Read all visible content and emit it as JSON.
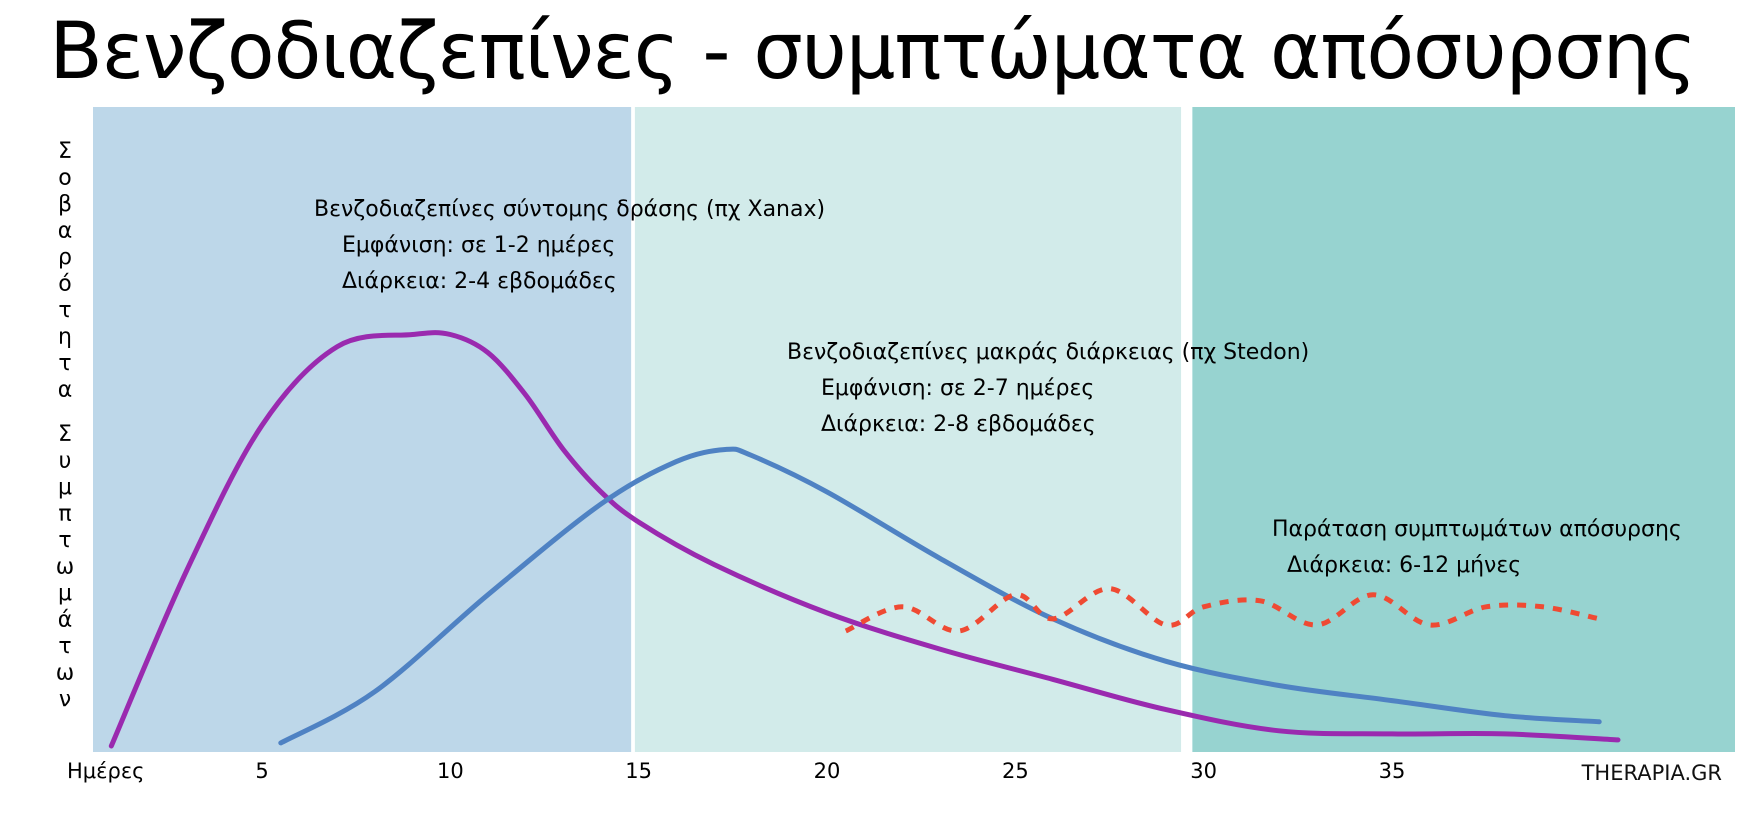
{
  "title": "Βενζοδιαζεπίνες - συμπτώματα απόσυρσης",
  "watermark": "THERAPIA.GR",
  "chart_data": {
    "type": "line",
    "xlabel": "Ημέρες",
    "ylabel": "Σοβαρότητα Συμπτωμάτων",
    "xlim": [
      1,
      42
    ],
    "ylim": [
      0,
      10
    ],
    "x_ticks": [
      5,
      10,
      15,
      20,
      25,
      30,
      35
    ],
    "grid": false,
    "bands": [
      {
        "x": [
          1,
          14.8
        ],
        "color": "#bdd7e9"
      },
      {
        "x": [
          14.9,
          29.4
        ],
        "color": "#d2ebea"
      },
      {
        "x": [
          29.7,
          42
        ],
        "color": "#97d3d0"
      }
    ],
    "series": [
      {
        "color": "#9a2aaf",
        "style": "solid",
        "x": [
          1,
          3,
          5,
          7,
          9,
          10,
          11,
          12,
          13,
          14,
          15,
          17,
          20,
          23,
          26,
          29,
          32,
          35,
          38,
          41
        ],
        "y": [
          0.1,
          3.0,
          5.4,
          6.7,
          6.9,
          6.9,
          6.6,
          5.9,
          5.0,
          4.3,
          3.8,
          3.1,
          2.3,
          1.7,
          1.2,
          0.7,
          0.35,
          0.3,
          0.3,
          0.2
        ]
      },
      {
        "color": "#4f82c3",
        "style": "solid",
        "x": [
          5.5,
          8,
          11,
          14,
          16,
          17.3,
          18,
          20,
          23,
          26,
          29,
          32,
          35,
          38,
          40.5
        ],
        "y": [
          0.15,
          1.0,
          2.6,
          4.1,
          4.8,
          5.0,
          4.9,
          4.3,
          3.2,
          2.2,
          1.5,
          1.1,
          0.85,
          0.6,
          0.5
        ]
      },
      {
        "color": "#ef4a33",
        "style": "dotted",
        "x": [
          20.5,
          22,
          23.5,
          25,
          26,
          27.5,
          29,
          30,
          31.5,
          33,
          34.5,
          36,
          37.5,
          39,
          40.5
        ],
        "y": [
          2.0,
          2.4,
          2.0,
          2.6,
          2.2,
          2.7,
          2.1,
          2.4,
          2.5,
          2.1,
          2.6,
          2.1,
          2.4,
          2.4,
          2.2
        ]
      }
    ],
    "annotations": [
      {
        "lines": [
          "Βενζοδιαζεπίνες σύντομης δράσης (πχ Xanax)",
          "Εμφάνιση: σε 1-2 ημέρες",
          "Διάρκεια: 2-4 εβδομάδες"
        ]
      },
      {
        "lines": [
          "Βενζοδιαζεπίνες μακράς διάρκειας (πχ Stedon)",
          "Εμφάνιση: σε 2-7 ημέρες",
          "Διάρκεια: 2-8 εβδομάδες"
        ]
      },
      {
        "lines": [
          "Παράταση συμπτωμάτων απόσυρσης",
          "Διάρκεια: 6-12 μήνες"
        ]
      }
    ]
  }
}
